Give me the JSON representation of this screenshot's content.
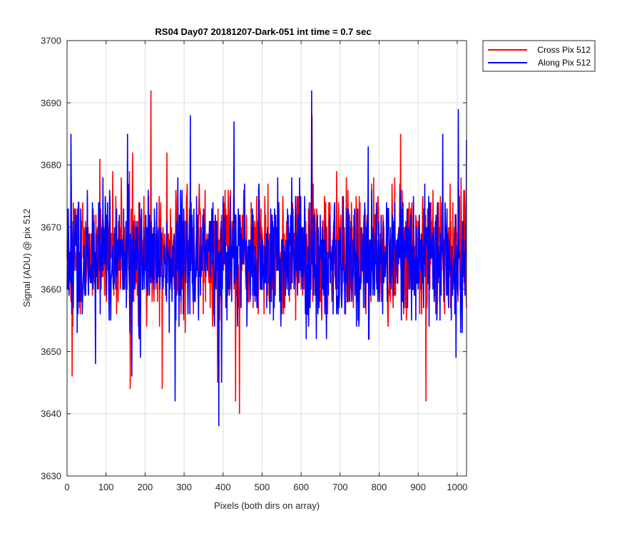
{
  "chart_data": {
    "type": "line",
    "title": "RS04 Day07 20181207-Dark-051 int time = 0.7 sec",
    "xlabel": "Pixels (both dirs on array)",
    "ylabel": "Signal (ADU) @ pix 512",
    "xlim": [
      0,
      1024
    ],
    "ylim": [
      3630,
      3700
    ],
    "xticks": [
      0,
      100,
      200,
      300,
      400,
      500,
      600,
      700,
      800,
      900,
      1000
    ],
    "yticks": [
      3630,
      3640,
      3650,
      3660,
      3670,
      3680,
      3690,
      3700
    ],
    "grid": true,
    "legend_position": "outside-top-right",
    "series": [
      {
        "name": "Cross Pix 512",
        "color": "#ff0000",
        "mean": 3666,
        "spikes_high": [
          [
            215,
            3692
          ],
          [
            628,
            3688
          ],
          [
            855,
            3685
          ],
          [
            84,
            3681
          ],
          [
            168,
            3682
          ],
          [
            256,
            3682
          ]
        ],
        "spikes_low": [
          [
            162,
            3644
          ],
          [
            244,
            3644
          ],
          [
            432,
            3642
          ],
          [
            442,
            3640
          ],
          [
            920,
            3642
          ],
          [
            13,
            3646
          ],
          [
            386,
            3645
          ]
        ]
      },
      {
        "name": "Along Pix 512",
        "color": "#0000ff",
        "mean": 3665,
        "spikes_high": [
          [
            10,
            3685
          ],
          [
            155,
            3685
          ],
          [
            316,
            3688
          ],
          [
            428,
            3687
          ],
          [
            627,
            3692
          ],
          [
            963,
            3685
          ],
          [
            1003,
            3689
          ],
          [
            772,
            3683
          ],
          [
            1025,
            3684
          ]
        ],
        "spikes_low": [
          [
            389,
            3638
          ],
          [
            277,
            3642
          ],
          [
            166,
            3646
          ],
          [
            73,
            3648
          ],
          [
            396,
            3645
          ],
          [
            188,
            3649
          ],
          [
            997,
            3649
          ]
        ]
      }
    ]
  }
}
